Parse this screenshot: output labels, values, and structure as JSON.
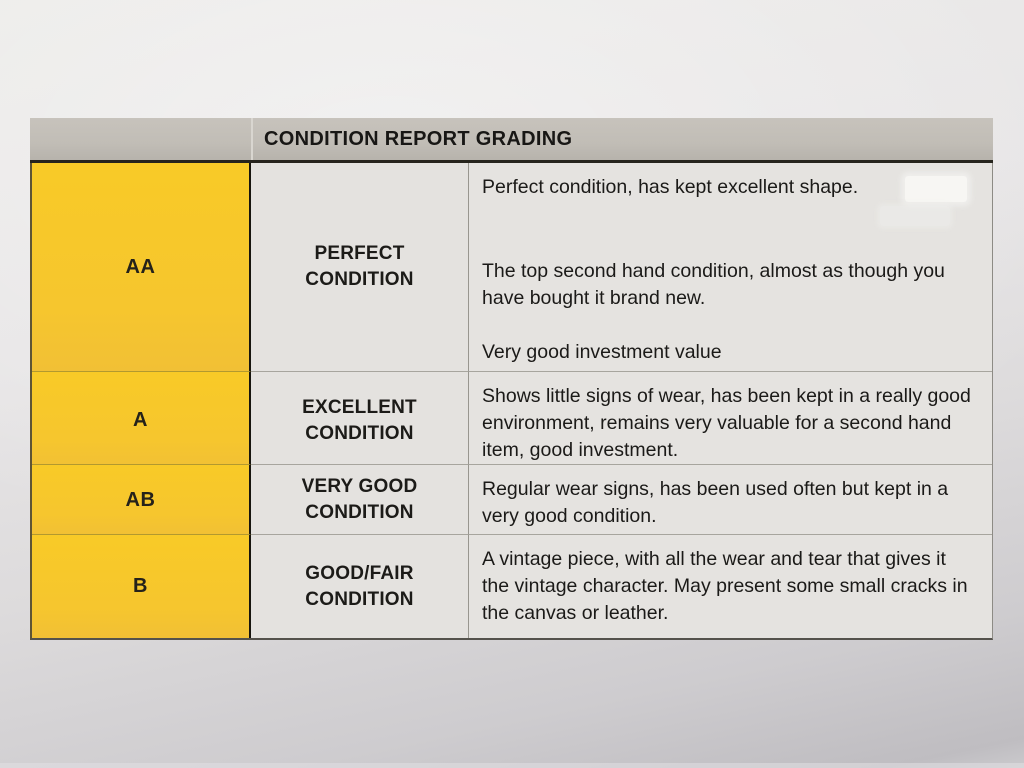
{
  "document": {
    "type": "condition-report-grading-table",
    "colors": {
      "paper_bg": "#e8e6e7",
      "header_gray": "#c2beb7",
      "grade_yellow": "#f7c72d",
      "cell_bg": "#e4e2df",
      "text": "#1b1a18"
    },
    "header": {
      "title": "CONDITION REPORT GRADING"
    },
    "rows": [
      {
        "grade": "AA",
        "condition": "PERFECT CONDITION",
        "description_paragraphs": [
          "Perfect condition, has kept excellent shape.",
          "The top second hand condition, almost as though you have bought it brand new.",
          "Very good investment value"
        ]
      },
      {
        "grade": "A",
        "condition": "EXCELLENT CONDITION",
        "description_paragraphs": [
          "Shows little signs of wear, has been kept in a really good environment, remains very valuable for a second hand item, good investment."
        ]
      },
      {
        "grade": "AB",
        "condition": "VERY GOOD CONDITION",
        "description_paragraphs": [
          "Regular wear signs, has been used often but kept in a very good condition."
        ]
      },
      {
        "grade": "B",
        "condition": "GOOD/FAIR CONDITION",
        "description_paragraphs": [
          "A vintage piece, with all the wear and tear that gives it the vintage character. May present some small cracks in the canvas or leather."
        ]
      }
    ]
  }
}
